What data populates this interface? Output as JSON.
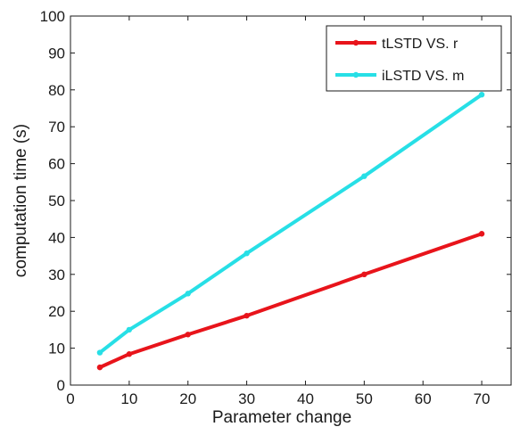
{
  "chart_data": {
    "type": "line",
    "xlabel": "Parameter change",
    "ylabel": "computation time (s)",
    "xlim": [
      0,
      75
    ],
    "ylim": [
      0,
      100
    ],
    "xticks": [
      0,
      10,
      20,
      30,
      40,
      50,
      60,
      70
    ],
    "yticks": [
      0,
      10,
      20,
      30,
      40,
      50,
      60,
      70,
      80,
      90,
      100
    ],
    "grid": false,
    "legend_position": "top-right",
    "x": [
      5,
      10,
      20,
      30,
      50,
      70
    ],
    "series": [
      {
        "name": "tLSTD VS. r",
        "color": "#e8141b",
        "values": [
          4.8,
          8.4,
          13.7,
          18.8,
          30.0,
          41.0
        ]
      },
      {
        "name": "iLSTD VS. m",
        "color": "#27dfe6",
        "values": [
          8.8,
          15.0,
          24.8,
          35.7,
          56.6,
          78.7
        ]
      }
    ]
  }
}
